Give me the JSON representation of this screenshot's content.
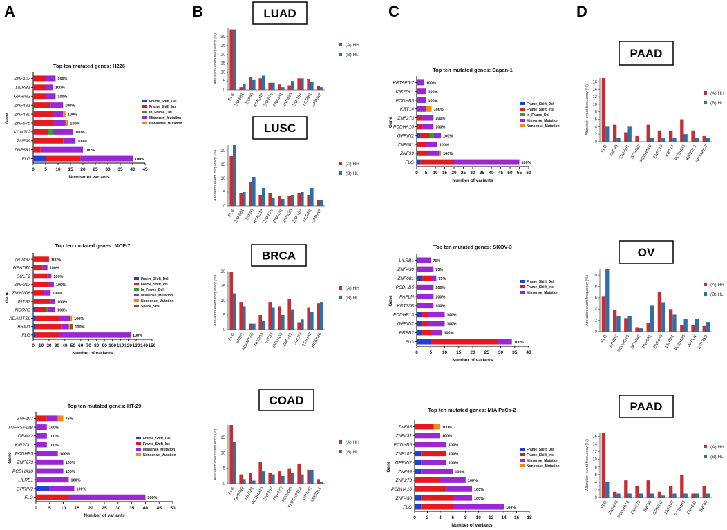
{
  "panel_letters": [
    "A",
    "B",
    "C",
    "D"
  ],
  "common": {
    "gene_axis_label": "Gene",
    "x_axis_label": "Number of variants",
    "y_axis_label": "Alteration event frequency (%)"
  },
  "colors": {
    "Frame_Shift_Del": "#1f3fd6",
    "Frame_Shift_Ins": "#e8191e",
    "In_Frame_Del": "#2ca02c",
    "Missense_Mutation": "#9a26d6",
    "Nonsense_Mutation": "#f08a18",
    "Splice_Site": "#8a5a2b",
    "HH": "#c23035",
    "HL": "#2f6fa8"
  },
  "chart_data": [
    {
      "type": "bar",
      "orientation": "horizontal",
      "stacked": true,
      "panel": "A",
      "title": "Top ten mutated genes: H226",
      "xlabel": "Number of variants",
      "ylabel": "Gene",
      "xlim": [
        0,
        45
      ],
      "xticks": [
        0,
        5,
        10,
        15,
        20,
        25,
        30,
        35,
        40,
        45
      ],
      "categories": [
        "ZNF107",
        "LILRB1",
        "GPRIN2",
        "ZNF431",
        "ZNF430",
        "ZNF675",
        "KCNJ12",
        "ZNF99",
        "ZNF681",
        "FLG"
      ],
      "series": [
        {
          "name": "Frame_Shift_Del",
          "values": [
            0,
            0,
            0,
            0,
            0,
            0,
            0,
            0,
            0,
            5
          ]
        },
        {
          "name": "Frame_Shift_Ins",
          "values": [
            5,
            5,
            5,
            7,
            8,
            8,
            6,
            12,
            3,
            14
          ]
        },
        {
          "name": "In_Frame_Del",
          "values": [
            0,
            0,
            0,
            0,
            0,
            0,
            2,
            0,
            0,
            0
          ]
        },
        {
          "name": "Missense_Mutation",
          "values": [
            4,
            3,
            4,
            5,
            4,
            5,
            8,
            5,
            17,
            21
          ]
        },
        {
          "name": "Nonsense_Mutation",
          "values": [
            0,
            0,
            0,
            0,
            1,
            1,
            0,
            0,
            0,
            0
          ]
        }
      ],
      "labels": [
        "100%",
        "100%",
        "100%",
        "100%",
        "100%",
        "100%",
        "100%",
        "100%",
        "100%",
        "100%"
      ]
    },
    {
      "type": "bar",
      "orientation": "horizontal",
      "stacked": true,
      "panel": "A",
      "title": "Top ten mutated genes: MCF-7",
      "xlabel": "Number of variants",
      "ylabel": "Gene",
      "xlim": [
        0,
        150
      ],
      "xticks": [
        0,
        10,
        20,
        30,
        40,
        50,
        60,
        70,
        80,
        90,
        100,
        110,
        120,
        130,
        140,
        150
      ],
      "categories": [
        "TRIM37",
        "HEATR6",
        "SULF2",
        "ZNF217",
        "ZMYND8",
        "INTS2",
        "NCOA3",
        "ADAMTS9",
        "BRIP1",
        "FLG"
      ],
      "series": [
        {
          "name": "Frame_Shift_Del",
          "values": [
            0,
            0,
            0,
            0,
            0,
            0,
            2,
            3,
            3,
            3
          ]
        },
        {
          "name": "Frame_Shift_Ins",
          "values": [
            20,
            12,
            18,
            20,
            14,
            22,
            14,
            30,
            32,
            30
          ]
        },
        {
          "name": "In_Frame_Del",
          "values": [
            0,
            0,
            0,
            0,
            0,
            0,
            2,
            0,
            0,
            0
          ]
        },
        {
          "name": "Missense_Mutation",
          "values": [
            0,
            6,
            5,
            6,
            8,
            6,
            10,
            14,
            10,
            90
          ]
        },
        {
          "name": "Nonsense_Mutation",
          "values": [
            0,
            0,
            0,
            0,
            0,
            0,
            0,
            2,
            2,
            0
          ]
        },
        {
          "name": "Splice_Site",
          "values": [
            0,
            0,
            0,
            0,
            0,
            0,
            0,
            0,
            3,
            0
          ]
        }
      ],
      "labels": [
        "100%",
        "100%",
        "100%",
        "100%",
        "100%",
        "100%",
        "100%",
        "100%",
        "100%",
        "100%"
      ]
    },
    {
      "type": "bar",
      "orientation": "horizontal",
      "stacked": true,
      "panel": "A",
      "title": "Top ten mutated genes: HT-29",
      "xlabel": "Number of variants",
      "ylabel": "Gene",
      "xlim": [
        0,
        50
      ],
      "xticks": [
        0,
        5,
        10,
        15,
        20,
        25,
        30,
        35,
        40,
        45,
        50
      ],
      "categories": [
        "ZNF107",
        "TNFRSF11B",
        "OR4M2",
        "KIR2DL1",
        "PCDHB5",
        "ZNF273",
        "PCDHA10",
        "LILRB1",
        "GPRIN2",
        "FLG"
      ],
      "series": [
        {
          "name": "Frame_Shift_Del",
          "values": [
            0,
            0,
            0,
            0,
            0,
            0,
            0,
            0,
            5,
            0
          ]
        },
        {
          "name": "Frame_Shift_Ins",
          "values": [
            4,
            0,
            0,
            0,
            0,
            0,
            0,
            0,
            0,
            12
          ]
        },
        {
          "name": "Missense_Mutation",
          "values": [
            4,
            4,
            4,
            4,
            8,
            10,
            10,
            12,
            9,
            28
          ]
        },
        {
          "name": "Nonsense_Mutation",
          "values": [
            2,
            0,
            0,
            0,
            0,
            0,
            0,
            0,
            0,
            0
          ]
        }
      ],
      "labels": [
        "75%",
        "100%",
        "100%",
        "100%",
        "100%",
        "100%",
        "100%",
        "100%",
        "100%",
        "100%"
      ]
    },
    {
      "type": "bar",
      "orientation": "vertical",
      "panel": "B",
      "cohort": "LUAD",
      "ylabel": "Alteration event frequency (%)",
      "ylim": [
        0,
        35
      ],
      "yticks": [
        0,
        5,
        10,
        15,
        20,
        25,
        30
      ],
      "categories": [
        "FLG",
        "ZNF681",
        "ZNF99",
        "KCNJ12",
        "ZNF675",
        "ZNF431",
        "ZNF430",
        "ZNF107",
        "LILRB1",
        "GPRIN2"
      ],
      "series": [
        {
          "name": "(A) HH",
          "values": [
            34,
            1.5,
            7,
            6.5,
            4,
            3,
            2.5,
            6.5,
            6,
            2
          ]
        },
        {
          "name": "(B) HL",
          "values": [
            34,
            3.5,
            5.5,
            8,
            4,
            1.5,
            5,
            6.5,
            4.5,
            1.5
          ]
        }
      ]
    },
    {
      "type": "bar",
      "orientation": "vertical",
      "panel": "B",
      "cohort": "LUSC",
      "ylabel": "Alteration event frequency (%)",
      "ylim": [
        0,
        22
      ],
      "yticks": [
        0,
        5,
        10,
        15,
        20
      ],
      "categories": [
        "FLG",
        "ZNF681",
        "ZNF99",
        "KCNJ12",
        "ZNF675",
        "ZNF431",
        "ZNF430",
        "ZNF107",
        "LILRB1",
        "GPRIN2"
      ],
      "series": [
        {
          "name": "(A) HH",
          "values": [
            18,
            4.5,
            8.5,
            4,
            4.5,
            3.5,
            3.5,
            4.5,
            4,
            2
          ]
        },
        {
          "name": "(B) HL",
          "values": [
            22,
            5,
            10.5,
            6.5,
            3,
            2.5,
            4,
            5,
            6.5,
            2
          ]
        }
      ]
    },
    {
      "type": "bar",
      "orientation": "vertical",
      "panel": "B",
      "cohort": "BRCA",
      "ylabel": "Alteration event frequency (%)",
      "ylim": [
        0,
        20
      ],
      "yticks": [
        0,
        5,
        10,
        15,
        20
      ],
      "categories": [
        "FLG",
        "BRIP1",
        "ADAMTS9",
        "NCOA3",
        "INTS2",
        "ZMYND8",
        "ZNF217",
        "SULF2",
        "TRIM37",
        "HEATR6"
      ],
      "series": [
        {
          "name": "(A) HH",
          "values": [
            20,
            9.5,
            2,
            5,
            9.5,
            8,
            10.5,
            2.5,
            7.5,
            9
          ]
        },
        {
          "name": "(B) HL",
          "values": [
            12.5,
            8,
            2,
            3,
            7.5,
            5,
            7,
            3.5,
            6,
            9.5
          ]
        }
      ]
    },
    {
      "type": "bar",
      "orientation": "vertical",
      "panel": "B",
      "cohort": "COAD",
      "ylabel": "Alteration event frequency (%)",
      "ylim": [
        0,
        19
      ],
      "yticks": [
        0,
        5,
        10,
        15
      ],
      "categories": [
        "FLG",
        "GPRIN2",
        "LILRB1",
        "PCDHA10",
        "ZNF107",
        "ZNF273",
        "PCDHB5",
        "TNFRSF11B",
        "OR4M2",
        "KIR2DL1"
      ],
      "series": [
        {
          "name": "(A) HH",
          "values": [
            19,
            3,
            3.5,
            7,
            3.5,
            4,
            5,
            6.5,
            4.5,
            1.5
          ]
        },
        {
          "name": "(B) HL",
          "values": [
            13.5,
            1.5,
            1,
            4,
            3,
            2.5,
            3.5,
            3,
            4.5,
            0.5
          ]
        }
      ]
    },
    {
      "type": "bar",
      "orientation": "horizontal",
      "stacked": true,
      "panel": "C",
      "title": "Top ten mutated genes: Capan-1",
      "xlabel": "Number of variants",
      "ylabel": "Gene",
      "xlim": [
        0,
        60
      ],
      "xticks": [
        0,
        5,
        10,
        15,
        20,
        25,
        30,
        35,
        40,
        45,
        50,
        55,
        60
      ],
      "categories": [
        "KRTAP5-7",
        "KIR2DL1",
        "PCDHB5",
        "KRT14",
        "ZNF273",
        "PCDHA10",
        "GPRIN2",
        "ZNF681",
        "ZNF99",
        "FLG"
      ],
      "series": [
        {
          "name": "Frame_Shift_Del",
          "values": [
            0,
            0,
            0,
            0,
            0,
            0,
            2,
            0,
            0,
            2
          ]
        },
        {
          "name": "Frame_Shift_Ins",
          "values": [
            0,
            0,
            0,
            0,
            3,
            3,
            5,
            5,
            6,
            18
          ]
        },
        {
          "name": "In_Frame_Del",
          "values": [
            0,
            0,
            0,
            0,
            0,
            0,
            2,
            0,
            0,
            0
          ]
        },
        {
          "name": "Missense_Mutation",
          "values": [
            4,
            5,
            5,
            5,
            6,
            6,
            4,
            6,
            6,
            35
          ]
        },
        {
          "name": "Nonsense_Mutation",
          "values": [
            0,
            0,
            0,
            3,
            0,
            0,
            0,
            0,
            1,
            0
          ]
        }
      ],
      "labels": [
        "100%",
        "100%",
        "100%",
        "100%",
        "100%",
        "100%",
        "100%",
        "100%",
        "100%",
        "100%"
      ]
    },
    {
      "type": "bar",
      "orientation": "horizontal",
      "stacked": true,
      "panel": "C",
      "title": "Top ten mutated genes: SKOV-3",
      "xlabel": "Number of variants",
      "ylabel": "Gene",
      "xlim": [
        0,
        40
      ],
      "xticks": [
        0,
        5,
        10,
        15,
        20,
        25,
        30,
        35,
        40
      ],
      "categories": [
        "LILRB1",
        "ZNF430",
        "ZNF681",
        "PCDHB5",
        "PAPLN",
        "KRT33B",
        "PCDHB13",
        "GPRIN2",
        "ERBB2",
        "FLG"
      ],
      "series": [
        {
          "name": "Frame_Shift_Del",
          "values": [
            0,
            0,
            2,
            0,
            0,
            0,
            2,
            2,
            2,
            5
          ]
        },
        {
          "name": "Frame_Shift_Ins",
          "values": [
            0,
            0,
            3,
            0,
            0,
            0,
            2,
            2,
            3,
            24
          ]
        },
        {
          "name": "Missense_Mutation",
          "values": [
            5,
            6,
            2,
            6,
            6,
            6,
            6,
            6,
            4,
            5
          ]
        }
      ],
      "labels": [
        "75%",
        "75%",
        "75%",
        "100%",
        "100%",
        "100%",
        "100%",
        "100%",
        "100%",
        "100%"
      ]
    },
    {
      "type": "bar",
      "orientation": "horizontal",
      "stacked": true,
      "panel": "C",
      "title": "Top ten mutated genes: MIA PaCa-2",
      "xlabel": "Number of variants",
      "ylabel": "Gene",
      "xlim": [
        0,
        18
      ],
      "xticks": [
        0,
        2,
        4,
        6,
        8,
        10,
        12,
        14,
        16,
        18
      ],
      "categories": [
        "ZNF85",
        "ZNF431",
        "PCDHB5",
        "ZNF107",
        "GPRIN2",
        "ZNF99",
        "ZNF273",
        "PCDHA10",
        "ZNF430",
        "FLG"
      ],
      "series": [
        {
          "name": "Frame_Shift_Del",
          "values": [
            0,
            0,
            0,
            1,
            1,
            1,
            0,
            0,
            1,
            1
          ]
        },
        {
          "name": "Frame_Shift_Ins",
          "values": [
            3,
            0,
            0,
            4,
            0,
            0,
            4,
            5,
            5,
            5
          ]
        },
        {
          "name": "Missense_Mutation",
          "values": [
            0,
            4,
            5,
            0,
            4,
            5,
            4,
            4,
            3,
            8
          ]
        },
        {
          "name": "Nonsense_Mutation",
          "values": [
            1,
            0,
            0,
            0,
            0,
            0,
            0,
            0,
            0,
            0
          ]
        }
      ],
      "labels": [
        "100%",
        "100%",
        "100%",
        "100%",
        "100%",
        "100%",
        "100%",
        "100%",
        "100%",
        "100%"
      ]
    },
    {
      "type": "bar",
      "orientation": "vertical",
      "panel": "D",
      "cohort": "PAAD",
      "ylabel": "Alteration event frequency (%)",
      "ylim": [
        0,
        17
      ],
      "yticks": [
        0,
        2,
        4,
        6,
        8,
        10,
        12,
        14,
        16
      ],
      "categories": [
        "FLG",
        "ZNF99",
        "ZNF681",
        "GPRIN2",
        "PCDHA10",
        "ZNF273",
        "KRT14",
        "PCDHB5",
        "KIR2DL1",
        "KRTAP5-7"
      ],
      "series": [
        {
          "name": "(A) HH",
          "values": [
            17,
            4.5,
            2.5,
            1.5,
            4.5,
            3,
            3,
            6,
            3,
            1.5
          ]
        },
        {
          "name": "(B) HL",
          "values": [
            4,
            1,
            4,
            0,
            1,
            1,
            1,
            2,
            1,
            1
          ]
        }
      ]
    },
    {
      "type": "bar",
      "orientation": "vertical",
      "panel": "D",
      "cohort": "OV",
      "ylabel": "Alteration event frequency (%)",
      "ylim": [
        0,
        11
      ],
      "yticks": [
        0,
        2,
        4,
        6,
        8,
        10
      ],
      "categories": [
        "FLG",
        "ERBB2",
        "PCDHB13",
        "GPRIN2",
        "ZNF681",
        "ZNF430",
        "LILRB1",
        "PCDHB5",
        "PAPLN",
        "KRT33B"
      ],
      "series": [
        {
          "name": "(A) HH",
          "values": [
            6.2,
            3.8,
            2.4,
            0.8,
            1.5,
            7,
            4,
            1.2,
            1.2,
            1
          ]
        },
        {
          "name": "(B) HL",
          "values": [
            11,
            2.8,
            2.8,
            0.6,
            4.6,
            5.2,
            3,
            2.3,
            2.3,
            1.7
          ]
        }
      ]
    },
    {
      "type": "bar",
      "orientation": "vertical",
      "panel": "D",
      "cohort": "PAAD",
      "ylabel": "Alteration event frequency (%)",
      "ylim": [
        0,
        17
      ],
      "yticks": [
        0,
        2,
        4,
        6,
        8,
        10,
        12,
        14,
        16
      ],
      "categories": [
        "FLG",
        "ZNF430",
        "PCDHA10",
        "ZNF273",
        "ZNF99",
        "GPRIN2",
        "ZNF107",
        "PCDHB5",
        "ZNF431",
        "ZNF85"
      ],
      "series": [
        {
          "name": "(A) HH",
          "values": [
            17,
            1.5,
            4.5,
            3,
            4.5,
            1.5,
            3,
            6,
            1,
            3
          ]
        },
        {
          "name": "(B) HL",
          "values": [
            4,
            1,
            1,
            1,
            1,
            0.5,
            1,
            1,
            1,
            1
          ]
        }
      ]
    }
  ]
}
